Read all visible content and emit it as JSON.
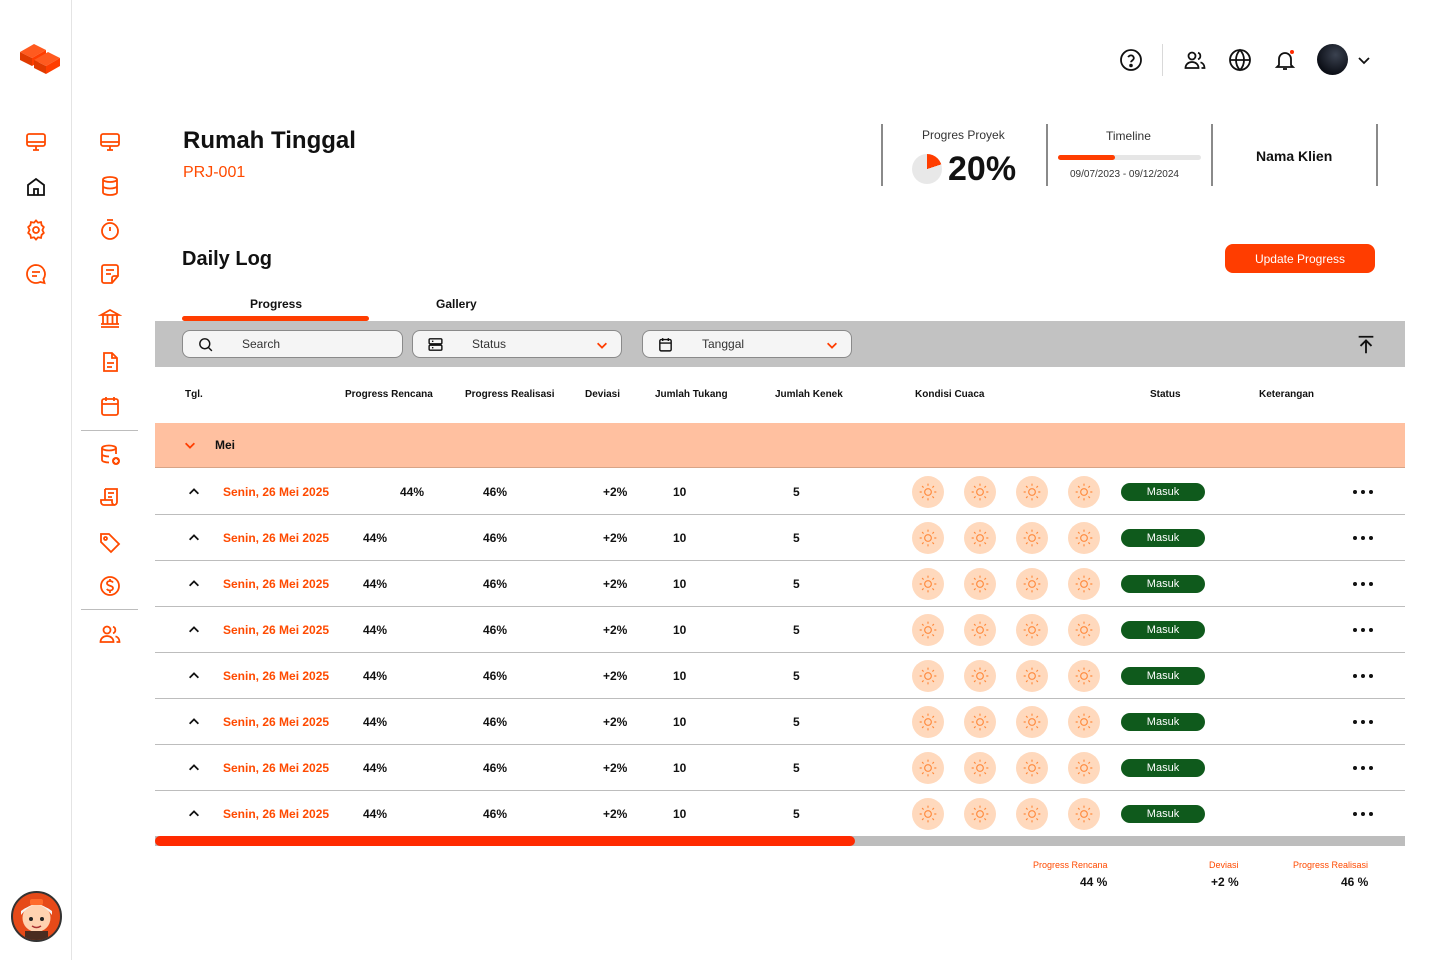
{
  "colors": {
    "accent": "#ff3d00",
    "status_green": "#0f5a1c",
    "group_row_bg": "#ffc0a0",
    "sun_bg": "#ffd9bd"
  },
  "rail": {
    "icons": [
      "desktop-icon",
      "home-icon",
      "gear-icon",
      "chat-icon"
    ]
  },
  "sidebar": {
    "icons": [
      "desktop-icon",
      "database-icon",
      "timer-icon",
      "notes-icon",
      "bank-icon",
      "document-icon",
      "calendar-icon",
      "database-add-icon",
      "receipt-icon",
      "tag-icon",
      "dollar-icon",
      "users-icon"
    ]
  },
  "header": {
    "icons": [
      "help-icon",
      "users-icon",
      "globe-icon",
      "bell-icon",
      "chevron-down-icon"
    ]
  },
  "project": {
    "title": "Rumah Tinggal",
    "code": "PRJ-001"
  },
  "kpi": {
    "progress_label": "Progres Proyek",
    "progress_value": "20%",
    "progress_fraction": 0.2,
    "timeline_label": "Timeline",
    "timeline_dates": "09/07/2023 - 09/12/2024",
    "timeline_fraction": 0.4,
    "client": "Nama Klien"
  },
  "daily_log": {
    "title": "Daily Log",
    "update_button": "Update Progress",
    "tabs": [
      "Progress",
      "Gallery"
    ],
    "active_tab": "Progress"
  },
  "filters": {
    "search": "Search",
    "status": "Status",
    "date": "Tanggal"
  },
  "table": {
    "headers": [
      "Tgl.",
      "Progress Rencana",
      "Progress Realisasi",
      "Deviasi",
      "Jumlah Tukang",
      "Jumlah Kenek",
      "Kondisi Cuaca",
      "Status",
      "Keterangan"
    ],
    "group": "Mei",
    "rows": [
      {
        "date": "Senin, 26 Mei 2025",
        "rencana": "44%",
        "realisasi": "46%",
        "deviasi": "+2%",
        "tukang": "10",
        "kenek": "5",
        "status": "Masuk"
      },
      {
        "date": "Senin, 26 Mei 2025",
        "rencana": "44%",
        "realisasi": "46%",
        "deviasi": "+2%",
        "tukang": "10",
        "kenek": "5",
        "status": "Masuk"
      },
      {
        "date": "Senin, 26 Mei 2025",
        "rencana": "44%",
        "realisasi": "46%",
        "deviasi": "+2%",
        "tukang": "10",
        "kenek": "5",
        "status": "Masuk"
      },
      {
        "date": "Senin, 26 Mei 2025",
        "rencana": "44%",
        "realisasi": "46%",
        "deviasi": "+2%",
        "tukang": "10",
        "kenek": "5",
        "status": "Masuk"
      },
      {
        "date": "Senin, 26 Mei 2025",
        "rencana": "44%",
        "realisasi": "46%",
        "deviasi": "+2%",
        "tukang": "10",
        "kenek": "5",
        "status": "Masuk"
      },
      {
        "date": "Senin, 26 Mei 2025",
        "rencana": "44%",
        "realisasi": "46%",
        "deviasi": "+2%",
        "tukang": "10",
        "kenek": "5",
        "status": "Masuk"
      },
      {
        "date": "Senin, 26 Mei 2025",
        "rencana": "44%",
        "realisasi": "46%",
        "deviasi": "+2%",
        "tukang": "10",
        "kenek": "5",
        "status": "Masuk"
      },
      {
        "date": "Senin, 26 Mei 2025",
        "rencana": "44%",
        "realisasi": "46%",
        "deviasi": "+2%",
        "tukang": "10",
        "kenek": "5",
        "status": "Masuk"
      }
    ],
    "weather_icon": "sun-icon",
    "scroll_fraction": 0.56
  },
  "summary": {
    "rencana_label": "Progress Rencana",
    "rencana_value": "44 %",
    "deviasi_label": "Deviasi",
    "deviasi_value": "+2 %",
    "realisasi_label": "Progress Realisasi",
    "realisasi_value": "46 %"
  }
}
